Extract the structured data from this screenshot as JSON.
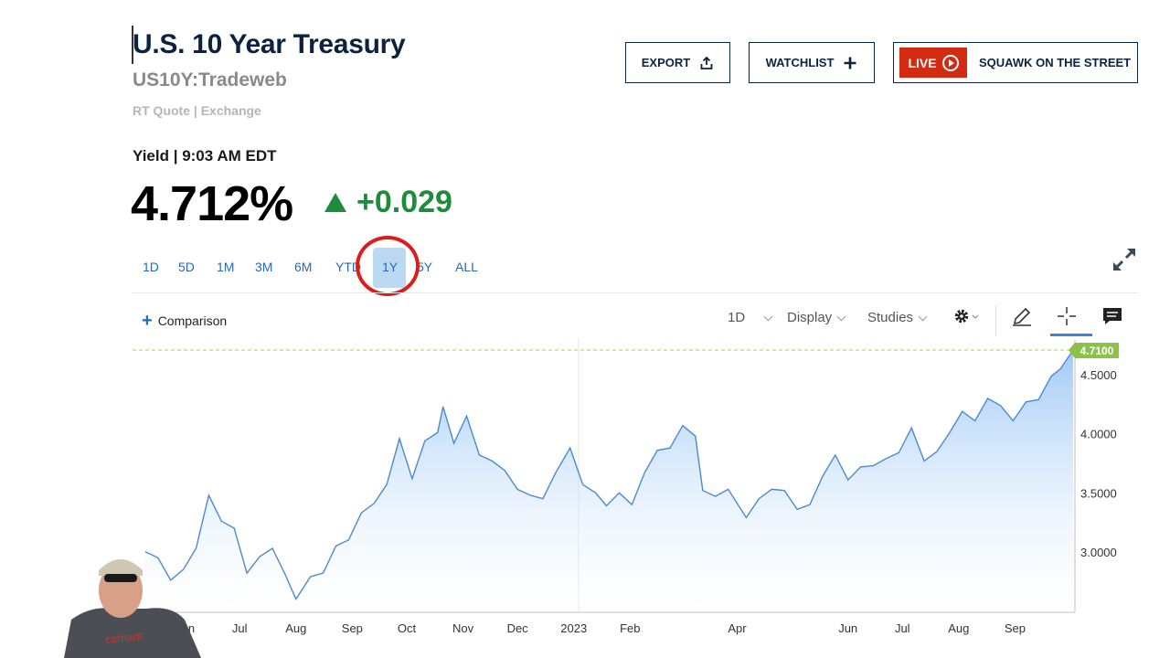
{
  "header": {
    "title": "U.S. 10 Year Treasury",
    "symbol": "US10Y:Tradeweb",
    "quote_info": "RT Quote | Exchange",
    "yield_label": "Yield | 9:03 AM EDT",
    "price": "4.712%",
    "change": "+0.029"
  },
  "actions": {
    "export_label": "EXPORT",
    "watchlist_label": "WATCHLIST",
    "live_label": "LIVE",
    "squawk_label": "SQUAWK ON THE STREET"
  },
  "ranges": [
    "1D",
    "5D",
    "1M",
    "3M",
    "6M",
    "YTD",
    "1Y",
    "5Y",
    "ALL"
  ],
  "selected_range": "1Y",
  "toolbar": {
    "comparison_label": "Comparison",
    "interval_label": "1D",
    "display_label": "Display",
    "studies_label": "Studies"
  },
  "colors": {
    "navy": "#0c2340",
    "accent_blue": "#2568b8",
    "up_green": "#1e8c3a",
    "live_red": "#d22b12",
    "line": "#4a8ad0",
    "last_value_badge": "#8bc34a"
  },
  "icons": [
    "export-icon",
    "plus-icon",
    "play-icon",
    "expand-icon",
    "settings-icon",
    "pencil-icon",
    "crosshair-icon",
    "comment-icon"
  ],
  "chart_data": {
    "type": "area",
    "series": [
      {
        "points": [
          [
            "2022-05-10",
            3.0
          ],
          [
            "2022-05-17",
            2.95
          ],
          [
            "2022-05-24",
            2.76
          ],
          [
            "2022-05-31",
            2.85
          ],
          [
            "2022-06-07",
            3.03
          ],
          [
            "2022-06-14",
            3.48
          ],
          [
            "2022-06-21",
            3.26
          ],
          [
            "2022-06-28",
            3.2
          ],
          [
            "2022-07-05",
            2.82
          ],
          [
            "2022-07-12",
            2.96
          ],
          [
            "2022-07-19",
            3.03
          ],
          [
            "2022-07-26",
            2.81
          ],
          [
            "2022-08-01",
            2.6
          ],
          [
            "2022-08-09",
            2.79
          ],
          [
            "2022-08-16",
            2.82
          ],
          [
            "2022-08-23",
            3.05
          ],
          [
            "2022-08-30",
            3.1
          ],
          [
            "2022-09-06",
            3.33
          ],
          [
            "2022-09-13",
            3.41
          ],
          [
            "2022-09-20",
            3.57
          ],
          [
            "2022-09-27",
            3.96
          ],
          [
            "2022-10-04",
            3.62
          ],
          [
            "2022-10-11",
            3.94
          ],
          [
            "2022-10-18",
            4.01
          ],
          [
            "2022-10-21",
            4.23
          ],
          [
            "2022-10-27",
            3.92
          ],
          [
            "2022-11-03",
            4.15
          ],
          [
            "2022-11-10",
            3.82
          ],
          [
            "2022-11-17",
            3.77
          ],
          [
            "2022-11-24",
            3.69
          ],
          [
            "2022-12-01",
            3.53
          ],
          [
            "2022-12-08",
            3.48
          ],
          [
            "2022-12-15",
            3.45
          ],
          [
            "2022-12-22",
            3.67
          ],
          [
            "2022-12-30",
            3.88
          ],
          [
            "2023-01-06",
            3.57
          ],
          [
            "2023-01-13",
            3.5
          ],
          [
            "2023-01-19",
            3.39
          ],
          [
            "2023-01-26",
            3.5
          ],
          [
            "2023-02-02",
            3.4
          ],
          [
            "2023-02-09",
            3.67
          ],
          [
            "2023-02-16",
            3.86
          ],
          [
            "2023-02-23",
            3.88
          ],
          [
            "2023-03-02",
            4.07
          ],
          [
            "2023-03-09",
            3.98
          ],
          [
            "2023-03-13",
            3.52
          ],
          [
            "2023-03-20",
            3.47
          ],
          [
            "2023-03-27",
            3.53
          ],
          [
            "2023-04-06",
            3.29
          ],
          [
            "2023-04-13",
            3.45
          ],
          [
            "2023-04-20",
            3.53
          ],
          [
            "2023-04-27",
            3.52
          ],
          [
            "2023-05-04",
            3.36
          ],
          [
            "2023-05-11",
            3.4
          ],
          [
            "2023-05-18",
            3.64
          ],
          [
            "2023-05-25",
            3.82
          ],
          [
            "2023-06-01",
            3.61
          ],
          [
            "2023-06-08",
            3.72
          ],
          [
            "2023-06-15",
            3.73
          ],
          [
            "2023-06-22",
            3.79
          ],
          [
            "2023-06-29",
            3.84
          ],
          [
            "2023-07-06",
            4.05
          ],
          [
            "2023-07-13",
            3.77
          ],
          [
            "2023-07-20",
            3.85
          ],
          [
            "2023-07-27",
            4.01
          ],
          [
            "2023-08-03",
            4.19
          ],
          [
            "2023-08-10",
            4.11
          ],
          [
            "2023-08-17",
            4.3
          ],
          [
            "2023-08-24",
            4.24
          ],
          [
            "2023-08-31",
            4.11
          ],
          [
            "2023-09-07",
            4.27
          ],
          [
            "2023-09-14",
            4.29
          ],
          [
            "2023-09-21",
            4.49
          ],
          [
            "2023-09-26",
            4.55
          ],
          [
            "2023-10-03",
            4.71
          ]
        ]
      }
    ],
    "x_tick_labels": [
      "Jun",
      "Jul",
      "Aug",
      "Sep",
      "Oct",
      "Nov",
      "Dec",
      "2023",
      "Feb",
      "Apr",
      "Jun",
      "Jul",
      "Aug",
      "Sep"
    ],
    "y_tick_labels": [
      "3.0000",
      "3.5000",
      "4.0000",
      "4.5000"
    ],
    "ylim": [
      2.48,
      4.86
    ],
    "last_value_label": "4.7100",
    "grid": false
  }
}
